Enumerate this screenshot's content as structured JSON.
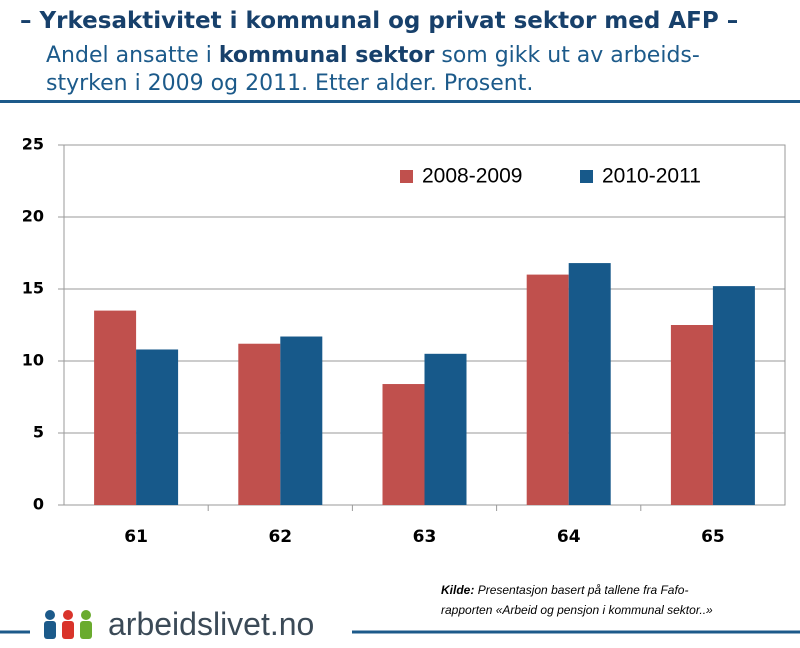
{
  "header": {
    "title": "– Yrkesaktivitet i kommunal og privat sektor med AFP –",
    "subtitle": [
      "Andel ansatte i ",
      "kommunal sektor",
      " som gikk ut av arbeids-",
      "styrken i 2009 og 2011. Etter alder. Prosent."
    ]
  },
  "chart_data": {
    "type": "bar",
    "categories": [
      "61",
      "62",
      "63",
      "64",
      "65"
    ],
    "series": [
      {
        "name": "2008-2009",
        "color": "#c0504d",
        "values": [
          13.5,
          11.2,
          8.4,
          16.0,
          12.5
        ]
      },
      {
        "name": "2010-2011",
        "color": "#17598a",
        "values": [
          10.8,
          11.7,
          10.5,
          16.8,
          15.2
        ]
      }
    ],
    "ylim": [
      0,
      25
    ],
    "yticks": [
      0,
      5,
      10,
      15,
      20,
      25
    ],
    "grid": true,
    "legend": "top-right"
  },
  "footer": {
    "source_label": "Kilde:",
    "source": [
      "Presentasjon basert på tallene fra Fafo-",
      "rapporten «Arbeid og pensjon i kommunal sektor..»"
    ],
    "logo": "arbeidslivet.no"
  }
}
